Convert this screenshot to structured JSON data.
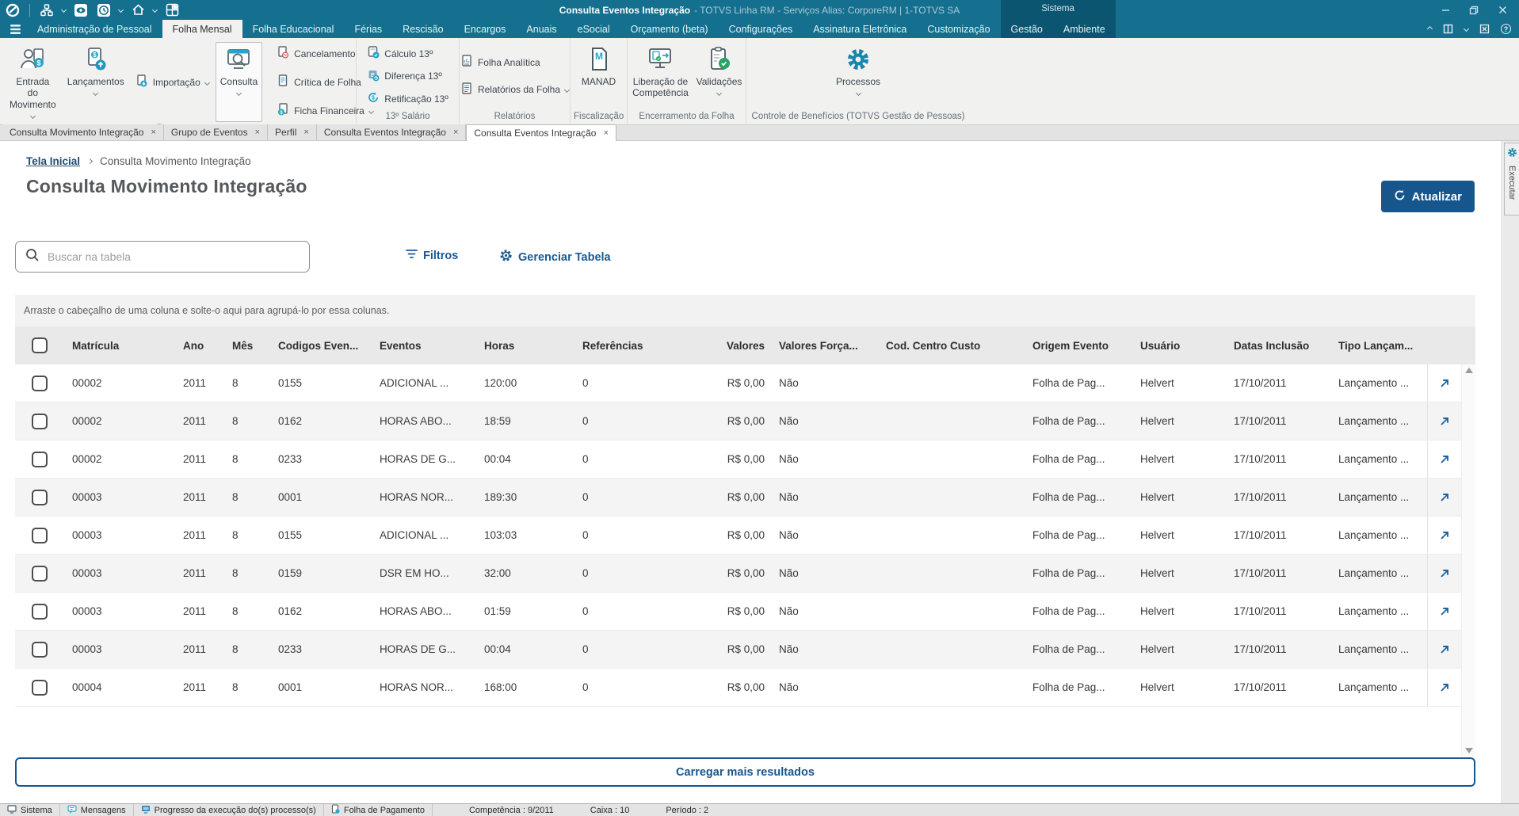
{
  "titlebar": {
    "title_primary": "Consulta Eventos Integração",
    "title_secondary": "- TOTVS Linha RM - Serviços  Alias: CorporeRM | 1-TOTVS SA"
  },
  "menu_tabs": [
    {
      "label": "Administração de Pessoal",
      "active": false
    },
    {
      "label": "Folha Mensal",
      "active": true
    },
    {
      "label": "Folha Educacional",
      "active": false
    },
    {
      "label": "Férias",
      "active": false
    },
    {
      "label": "Rescisão",
      "active": false
    },
    {
      "label": "Encargos",
      "active": false
    },
    {
      "label": "Anuais",
      "active": false
    },
    {
      "label": "eSocial",
      "active": false
    },
    {
      "label": "Orçamento (beta)",
      "active": false
    },
    {
      "label": "Configurações",
      "active": false
    },
    {
      "label": "Assinatura Eletrônica",
      "active": false
    },
    {
      "label": "Customização",
      "active": false
    }
  ],
  "contextual": {
    "group_label": "Sistema",
    "tabs": [
      "Gestão",
      "Ambiente"
    ]
  },
  "ribbon": {
    "groups": [
      {
        "label": "Processos"
      },
      {
        "label": "13º Salário"
      },
      {
        "label": "Relatórios"
      },
      {
        "label": "Fiscalização"
      },
      {
        "label": "Encerramento da Folha"
      },
      {
        "label": "Controle de Benefícios (TOTVS Gestão de Pessoas)"
      }
    ],
    "buttons": {
      "entrada": "Entrada do Movimento",
      "lancamentos": "Lançamentos",
      "importacao": "Importação",
      "consulta": "Consulta",
      "cancelamento": "Cancelamento",
      "critica": "Crítica de Folha",
      "ficha": "Ficha Financeira",
      "calculo13": "Cálculo 13º",
      "diferenca13": "Diferença 13º",
      "retificacao13": "Retificação 13º",
      "folha_analitica": "Folha Analítica",
      "relatorios_folha": "Relatórios da Folha",
      "manad": "MANAD",
      "liberacao": "Liberação de\nCompetência",
      "validacoes": "Validações",
      "processos": "Processos"
    }
  },
  "doc_tabs": [
    {
      "label": "Consulta Movimento Integração",
      "active": false
    },
    {
      "label": "Grupo de Eventos",
      "active": false
    },
    {
      "label": "Perfil",
      "active": false
    },
    {
      "label": "Consulta Eventos Integração",
      "active": false
    },
    {
      "label": "Consulta Eventos Integração",
      "active": true
    }
  ],
  "breadcrumb": {
    "home": "Tela Inicial",
    "current": "Consulta Movimento Integração"
  },
  "page": {
    "title": "Consulta Movimento Integração",
    "refresh_label": "Atualizar"
  },
  "toolbar": {
    "search_placeholder": "Buscar na tabela",
    "filters_label": "Filtros",
    "manage_table_label": "Gerenciar Tabela"
  },
  "side_tab": {
    "label": "Executar"
  },
  "table": {
    "group_hint": "Arraste o cabeçalho de uma coluna e solte-o aqui para agrupá-lo por essa colunas.",
    "columns": [
      {
        "label": "Matrícula"
      },
      {
        "label": "Ano"
      },
      {
        "label": "Mês"
      },
      {
        "label": "Codigos Even..."
      },
      {
        "label": "Eventos"
      },
      {
        "label": "Horas"
      },
      {
        "label": "Referências"
      },
      {
        "label": "Valores"
      },
      {
        "label": "Valores Força..."
      },
      {
        "label": "Cod. Centro Custo"
      },
      {
        "label": "Origem Evento"
      },
      {
        "label": "Usuário"
      },
      {
        "label": "Datas Inclusão"
      },
      {
        "label": "Tipo Lançam..."
      }
    ],
    "rows": [
      {
        "matricula": "00002",
        "ano": "2011",
        "mes": "8",
        "codigo": "0155",
        "evento": "ADICIONAL ...",
        "horas": "120:00",
        "referencias": "0",
        "valores": "R$ 0,00",
        "valores_forcado": "Não",
        "centro_custo": "",
        "origem": "Folha de Pag...",
        "usuario": "Helvert",
        "data_inclusao": "17/10/2011",
        "tipo": "Lançamento ..."
      },
      {
        "matricula": "00002",
        "ano": "2011",
        "mes": "8",
        "codigo": "0162",
        "evento": "HORAS ABO...",
        "horas": "18:59",
        "referencias": "0",
        "valores": "R$ 0,00",
        "valores_forcado": "Não",
        "centro_custo": "",
        "origem": "Folha de Pag...",
        "usuario": "Helvert",
        "data_inclusao": "17/10/2011",
        "tipo": "Lançamento ..."
      },
      {
        "matricula": "00002",
        "ano": "2011",
        "mes": "8",
        "codigo": "0233",
        "evento": "HORAS DE G...",
        "horas": "00:04",
        "referencias": "0",
        "valores": "R$ 0,00",
        "valores_forcado": "Não",
        "centro_custo": "",
        "origem": "Folha de Pag...",
        "usuario": "Helvert",
        "data_inclusao": "17/10/2011",
        "tipo": "Lançamento ..."
      },
      {
        "matricula": "00003",
        "ano": "2011",
        "mes": "8",
        "codigo": "0001",
        "evento": "HORAS NOR...",
        "horas": "189:30",
        "referencias": "0",
        "valores": "R$ 0,00",
        "valores_forcado": "Não",
        "centro_custo": "",
        "origem": "Folha de Pag...",
        "usuario": "Helvert",
        "data_inclusao": "17/10/2011",
        "tipo": "Lançamento ..."
      },
      {
        "matricula": "00003",
        "ano": "2011",
        "mes": "8",
        "codigo": "0155",
        "evento": "ADICIONAL ...",
        "horas": "103:03",
        "referencias": "0",
        "valores": "R$ 0,00",
        "valores_forcado": "Não",
        "centro_custo": "",
        "origem": "Folha de Pag...",
        "usuario": "Helvert",
        "data_inclusao": "17/10/2011",
        "tipo": "Lançamento ..."
      },
      {
        "matricula": "00003",
        "ano": "2011",
        "mes": "8",
        "codigo": "0159",
        "evento": "DSR EM HO...",
        "horas": "32:00",
        "referencias": "0",
        "valores": "R$ 0,00",
        "valores_forcado": "Não",
        "centro_custo": "",
        "origem": "Folha de Pag...",
        "usuario": "Helvert",
        "data_inclusao": "17/10/2011",
        "tipo": "Lançamento ..."
      },
      {
        "matricula": "00003",
        "ano": "2011",
        "mes": "8",
        "codigo": "0162",
        "evento": "HORAS ABO...",
        "horas": "01:59",
        "referencias": "0",
        "valores": "R$ 0,00",
        "valores_forcado": "Não",
        "centro_custo": "",
        "origem": "Folha de Pag...",
        "usuario": "Helvert",
        "data_inclusao": "17/10/2011",
        "tipo": "Lançamento ..."
      },
      {
        "matricula": "00003",
        "ano": "2011",
        "mes": "8",
        "codigo": "0233",
        "evento": "HORAS DE G...",
        "horas": "00:04",
        "referencias": "0",
        "valores": "R$ 0,00",
        "valores_forcado": "Não",
        "centro_custo": "",
        "origem": "Folha de Pag...",
        "usuario": "Helvert",
        "data_inclusao": "17/10/2011",
        "tipo": "Lançamento ..."
      },
      {
        "matricula": "00004",
        "ano": "2011",
        "mes": "8",
        "codigo": "0001",
        "evento": "HORAS NOR...",
        "horas": "168:00",
        "referencias": "0",
        "valores": "R$ 0,00",
        "valores_forcado": "Não",
        "centro_custo": "",
        "origem": "Folha de Pag...",
        "usuario": "Helvert",
        "data_inclusao": "17/10/2011",
        "tipo": "Lançamento ..."
      }
    ],
    "load_more_label": "Carregar mais resultados"
  },
  "statusbar": {
    "sistema": "Sistema",
    "mensagens": "Mensagens",
    "progresso": "Progresso da execução do(s) processo(s)",
    "folha": "Folha de Pagamento",
    "competencia": "Competência : 9/2011",
    "caixa": "Caixa : 10",
    "periodo": "Período : 2"
  }
}
